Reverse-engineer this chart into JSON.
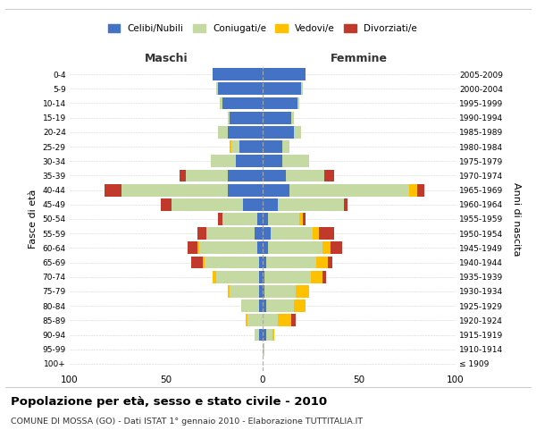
{
  "age_groups": [
    "100+",
    "95-99",
    "90-94",
    "85-89",
    "80-84",
    "75-79",
    "70-74",
    "65-69",
    "60-64",
    "55-59",
    "50-54",
    "45-49",
    "40-44",
    "35-39",
    "30-34",
    "25-29",
    "20-24",
    "15-19",
    "10-14",
    "5-9",
    "0-4"
  ],
  "birth_years": [
    "≤ 1909",
    "1910-1914",
    "1915-1919",
    "1920-1924",
    "1925-1929",
    "1930-1934",
    "1935-1939",
    "1940-1944",
    "1945-1949",
    "1950-1954",
    "1955-1959",
    "1960-1964",
    "1965-1969",
    "1970-1974",
    "1975-1979",
    "1980-1984",
    "1985-1989",
    "1990-1994",
    "1995-1999",
    "2000-2004",
    "2005-2009"
  ],
  "male": {
    "celibi": [
      0,
      0,
      2,
      0,
      2,
      2,
      2,
      2,
      3,
      4,
      3,
      10,
      18,
      18,
      14,
      12,
      18,
      17,
      21,
      23,
      26
    ],
    "coniugati": [
      0,
      0,
      2,
      8,
      9,
      15,
      22,
      28,
      30,
      25,
      18,
      37,
      55,
      22,
      13,
      4,
      5,
      1,
      1,
      1,
      0
    ],
    "vedovi": [
      0,
      0,
      0,
      1,
      0,
      1,
      2,
      1,
      1,
      0,
      0,
      0,
      0,
      0,
      0,
      1,
      0,
      0,
      0,
      0,
      0
    ],
    "divorziati": [
      0,
      0,
      0,
      0,
      0,
      0,
      0,
      6,
      5,
      5,
      2,
      6,
      9,
      3,
      0,
      0,
      0,
      0,
      0,
      0,
      0
    ]
  },
  "female": {
    "nubili": [
      0,
      0,
      2,
      0,
      2,
      1,
      1,
      2,
      3,
      4,
      3,
      8,
      14,
      12,
      10,
      10,
      16,
      15,
      18,
      20,
      22
    ],
    "coniugate": [
      0,
      1,
      3,
      8,
      14,
      16,
      24,
      26,
      28,
      22,
      16,
      34,
      62,
      20,
      14,
      4,
      4,
      1,
      1,
      1,
      0
    ],
    "vedove": [
      0,
      0,
      1,
      7,
      6,
      7,
      6,
      6,
      4,
      3,
      2,
      0,
      4,
      0,
      0,
      0,
      0,
      0,
      0,
      0,
      0
    ],
    "divorziate": [
      0,
      0,
      0,
      2,
      0,
      0,
      2,
      2,
      6,
      8,
      1,
      2,
      4,
      5,
      0,
      0,
      0,
      0,
      0,
      0,
      0
    ]
  },
  "colors": {
    "celibi": "#4472c4",
    "coniugati": "#c5d9a3",
    "vedovi": "#ffc000",
    "divorziati": "#c0392b"
  },
  "xlim": 100,
  "title": "Popolazione per età, sesso e stato civile - 2010",
  "subtitle": "COMUNE DI MOSSA (GO) - Dati ISTAT 1° gennaio 2010 - Elaborazione TUTTITALIA.IT",
  "ylabel_left": "Fasce di età",
  "ylabel_right": "Anni di nascita",
  "xlabel_left": "Maschi",
  "xlabel_right": "Femmine",
  "bg_color": "#ffffff"
}
